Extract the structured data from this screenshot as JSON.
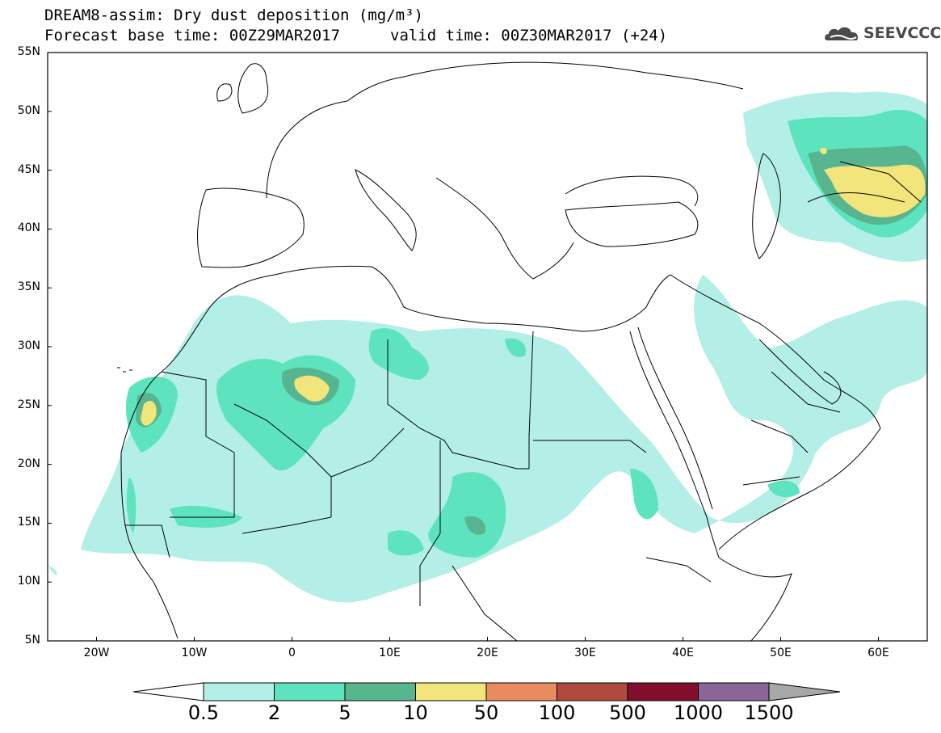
{
  "header": {
    "title_line1": "DREAM8-assim: Dry dust deposition (mg/m³)",
    "title_line2": "Forecast base time: 00Z29MAR2017",
    "valid_time": "valid time: 00Z30MAR2017 (+24)",
    "logo_text": "SEEVCCC"
  },
  "map": {
    "lat_labels": [
      "55N",
      "50N",
      "45N",
      "40N",
      "35N",
      "30N",
      "25N",
      "20N",
      "15N",
      "10N",
      "5N"
    ],
    "lon_labels": [
      "20W",
      "10W",
      "0",
      "10E",
      "20E",
      "30E",
      "40E",
      "50E",
      "60E"
    ],
    "lon_range": [
      -25,
      65
    ],
    "lat_range": [
      5,
      55
    ]
  },
  "colorbar": {
    "levels": [
      "0.5",
      "2",
      "5",
      "10",
      "50",
      "100",
      "500",
      "1000",
      "1500"
    ],
    "colors": [
      "#b3efe6",
      "#5de3be",
      "#57b590",
      "#f1e57b",
      "#e98c60",
      "#b04a3f",
      "#80102d",
      "#8b6498"
    ],
    "under_color": "#ffffff",
    "over_color": "#a8a8a8"
  }
}
